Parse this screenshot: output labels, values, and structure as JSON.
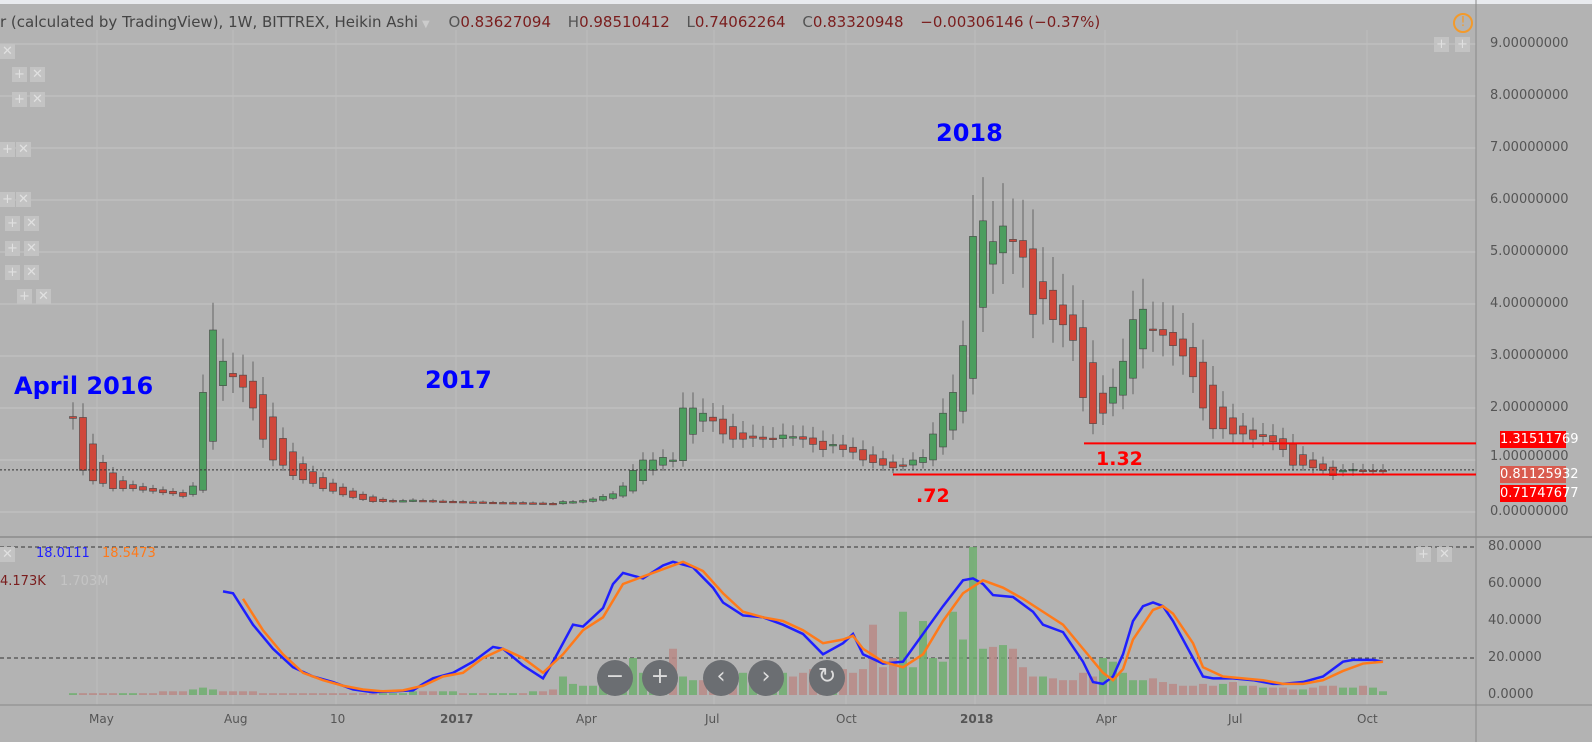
{
  "legend": {
    "title": "r (calculated by TradingView), 1W, BITTREX, Heikin Ashi",
    "o_label": "O",
    "o": "0.83627094",
    "h_label": "H",
    "h": "0.98510412",
    "l_label": "L",
    "l": "0.74062264",
    "c_label": "C",
    "c": "0.83320948",
    "change": "−0.00306146 (−0.37%)"
  },
  "price_axis": [
    "9.00000000",
    "8.00000000",
    "7.00000000",
    "6.00000000",
    "5.00000000",
    "4.00000000",
    "3.00000000",
    "2.00000000",
    "1.00000000",
    "0.00000000"
  ],
  "price_tags": {
    "upper": "1.31511769",
    "current": "0.81125932",
    "lower": "0.71747677"
  },
  "osc_axis": [
    "80.0000",
    "60.0000",
    "40.0000",
    "20.0000",
    "0.0000"
  ],
  "osc_legend": {
    "k": "18.0111",
    "d": "18.5473",
    "vol": "4.173K",
    "vol2": "1.703M"
  },
  "annotations": {
    "a2016": "April 2016",
    "a2017": "2017",
    "a2018": "2018",
    "l132": "1.32",
    "l72": ".72"
  },
  "time_axis": [
    "May",
    "Aug",
    "10",
    "2017",
    "Apr",
    "Jul",
    "Oct",
    "2018",
    "Apr",
    "Jul",
    "Oct"
  ],
  "nav": {
    "zoom_out": "−",
    "zoom_in": "+",
    "back": "‹",
    "forward": "›",
    "reset": "↻"
  },
  "colors": {
    "up": "#4c9e5e",
    "down": "#d0473a",
    "k": "#1f1fff",
    "d": "#ff7a1a",
    "line": "#ff0000"
  },
  "chart_data": {
    "type": "candlestick",
    "closes": [
      1.8,
      0.8,
      0.6,
      0.55,
      0.45,
      0.45,
      0.45,
      0.42,
      0.4,
      0.37,
      0.35,
      0.3,
      0.5,
      2.3,
      3.5,
      2.9,
      2.6,
      2.4,
      2.0,
      1.4,
      1.0,
      0.9,
      0.7,
      0.62,
      0.55,
      0.45,
      0.4,
      0.33,
      0.28,
      0.24,
      0.2,
      0.2,
      0.2,
      0.22,
      0.23,
      0.22,
      0.2,
      0.2,
      0.2,
      0.19,
      0.19,
      0.18,
      0.18,
      0.18,
      0.18,
      0.17,
      0.17,
      0.16,
      0.15,
      0.2,
      0.2,
      0.22,
      0.25,
      0.3,
      0.35,
      0.5,
      0.8,
      1.0,
      1.0,
      1.05,
      1.0,
      2.0,
      2.0,
      1.9,
      1.75,
      1.5,
      1.4,
      1.4,
      1.42,
      1.4,
      1.4,
      1.48,
      1.45,
      1.4,
      1.3,
      1.2,
      1.3,
      1.2,
      1.15,
      1.0,
      0.95,
      0.9,
      0.85,
      0.9,
      1.0,
      1.05,
      1.5,
      1.9,
      2.3,
      3.2,
      5.3,
      5.6,
      5.2,
      5.5,
      5.2,
      4.9,
      3.8,
      4.1,
      3.7,
      3.6,
      3.3,
      2.2,
      1.7,
      1.9,
      2.4,
      2.9,
      3.7,
      3.9,
      3.5,
      3.4,
      3.2,
      3.0,
      2.6,
      2.0,
      1.6,
      1.6,
      1.5,
      1.5,
      1.4,
      1.45,
      1.35,
      1.2,
      0.9,
      0.9,
      0.85,
      0.8,
      0.7,
      0.8,
      0.82,
      0.8,
      0.8,
      0.8
    ],
    "volume": [
      1,
      1,
      1,
      1,
      1,
      1,
      1,
      1,
      1,
      2,
      2,
      2,
      3,
      4,
      3,
      2,
      2,
      2,
      2,
      1,
      1,
      1,
      1,
      1,
      1,
      1,
      1,
      1,
      1,
      1,
      1,
      1,
      1,
      1,
      2,
      2,
      2,
      2,
      2,
      1,
      1,
      1,
      1,
      1,
      1,
      1,
      2,
      2,
      3,
      10,
      6,
      5,
      5,
      6,
      8,
      12,
      20,
      12,
      10,
      15,
      25,
      10,
      8,
      8,
      8,
      6,
      9,
      12,
      10,
      12,
      14,
      12,
      10,
      12,
      14,
      15,
      16,
      14,
      12,
      14,
      38,
      15,
      20,
      45,
      15,
      40,
      20,
      18,
      45,
      30,
      80,
      25,
      26,
      27,
      25,
      15,
      10,
      10,
      9,
      8,
      8,
      12,
      10,
      20,
      18,
      12,
      8,
      8,
      9,
      7,
      6,
      5,
      5,
      6,
      5,
      6,
      7,
      5,
      5,
      4,
      4,
      4,
      3,
      3,
      4,
      5,
      5,
      4,
      4,
      5,
      4,
      2
    ],
    "stoch_k": [
      [
        15,
        56
      ],
      [
        16,
        55
      ],
      [
        18,
        38
      ],
      [
        20,
        25
      ],
      [
        22,
        15
      ],
      [
        24,
        10
      ],
      [
        26,
        7
      ],
      [
        28,
        3
      ],
      [
        30,
        1.5
      ],
      [
        32,
        2
      ],
      [
        34,
        2.5
      ],
      [
        35,
        6
      ],
      [
        36,
        9
      ],
      [
        38,
        12
      ],
      [
        40,
        18
      ],
      [
        42,
        26
      ],
      [
        43,
        25
      ],
      [
        45,
        16
      ],
      [
        47,
        9
      ],
      [
        48,
        18
      ],
      [
        50,
        38
      ],
      [
        51,
        37
      ],
      [
        53,
        47
      ],
      [
        54,
        60
      ],
      [
        55,
        66
      ],
      [
        57,
        63
      ],
      [
        59,
        70
      ],
      [
        60,
        72
      ],
      [
        62,
        69
      ],
      [
        64,
        58
      ],
      [
        65,
        50
      ],
      [
        67,
        43
      ],
      [
        69,
        42
      ],
      [
        71,
        38
      ],
      [
        73,
        33
      ],
      [
        75,
        22
      ],
      [
        77,
        28
      ],
      [
        78,
        33
      ],
      [
        79,
        22
      ],
      [
        81,
        17
      ],
      [
        83,
        18
      ],
      [
        85,
        33
      ],
      [
        87,
        48
      ],
      [
        89,
        62
      ],
      [
        90,
        63
      ],
      [
        91,
        60
      ],
      [
        92,
        54
      ],
      [
        94,
        53
      ],
      [
        96,
        45
      ],
      [
        97,
        38
      ],
      [
        99,
        34
      ],
      [
        101,
        18
      ],
      [
        102,
        7
      ],
      [
        103,
        6
      ],
      [
        104,
        10
      ],
      [
        105,
        22
      ],
      [
        106,
        40
      ],
      [
        107,
        48
      ],
      [
        108,
        50
      ],
      [
        109,
        48
      ],
      [
        110,
        40
      ],
      [
        112,
        20
      ],
      [
        113,
        10
      ],
      [
        114,
        9
      ],
      [
        116,
        9
      ],
      [
        118,
        8
      ],
      [
        120,
        6
      ],
      [
        121,
        6
      ],
      [
        123,
        7
      ],
      [
        125,
        10
      ],
      [
        127,
        18
      ],
      [
        128,
        19
      ],
      [
        130,
        19
      ],
      [
        131,
        18
      ]
    ],
    "stoch_d": [
      [
        17,
        52
      ],
      [
        19,
        35
      ],
      [
        21,
        22
      ],
      [
        23,
        12
      ],
      [
        25,
        8
      ],
      [
        27,
        5
      ],
      [
        29,
        3
      ],
      [
        31,
        2
      ],
      [
        33,
        2.5
      ],
      [
        35,
        5
      ],
      [
        37,
        10
      ],
      [
        39,
        12
      ],
      [
        41,
        20
      ],
      [
        43,
        25
      ],
      [
        45,
        20
      ],
      [
        47,
        12
      ],
      [
        49,
        22
      ],
      [
        51,
        35
      ],
      [
        53,
        42
      ],
      [
        55,
        60
      ],
      [
        57,
        64
      ],
      [
        59,
        68
      ],
      [
        61,
        72
      ],
      [
        63,
        67
      ],
      [
        65,
        55
      ],
      [
        67,
        45
      ],
      [
        69,
        42
      ],
      [
        71,
        40
      ],
      [
        73,
        35
      ],
      [
        75,
        28
      ],
      [
        77,
        30
      ],
      [
        78,
        32
      ],
      [
        79,
        25
      ],
      [
        81,
        18
      ],
      [
        83,
        15
      ],
      [
        85,
        22
      ],
      [
        87,
        40
      ],
      [
        89,
        55
      ],
      [
        91,
        62
      ],
      [
        93,
        58
      ],
      [
        95,
        52
      ],
      [
        97,
        45
      ],
      [
        99,
        38
      ],
      [
        101,
        25
      ],
      [
        103,
        12
      ],
      [
        104,
        8
      ],
      [
        105,
        14
      ],
      [
        106,
        30
      ],
      [
        108,
        46
      ],
      [
        109,
        48
      ],
      [
        110,
        44
      ],
      [
        112,
        28
      ],
      [
        113,
        15
      ],
      [
        115,
        10
      ],
      [
        117,
        9
      ],
      [
        119,
        8
      ],
      [
        121,
        6
      ],
      [
        123,
        6
      ],
      [
        125,
        8
      ],
      [
        127,
        13
      ],
      [
        129,
        17
      ],
      [
        131,
        18
      ]
    ],
    "hlines": [
      1.32,
      0.72,
      0.81
    ],
    "ylim": [
      0,
      9
    ],
    "osc_lim": [
      0,
      80
    ],
    "osc_levels": [
      80,
      20
    ]
  }
}
